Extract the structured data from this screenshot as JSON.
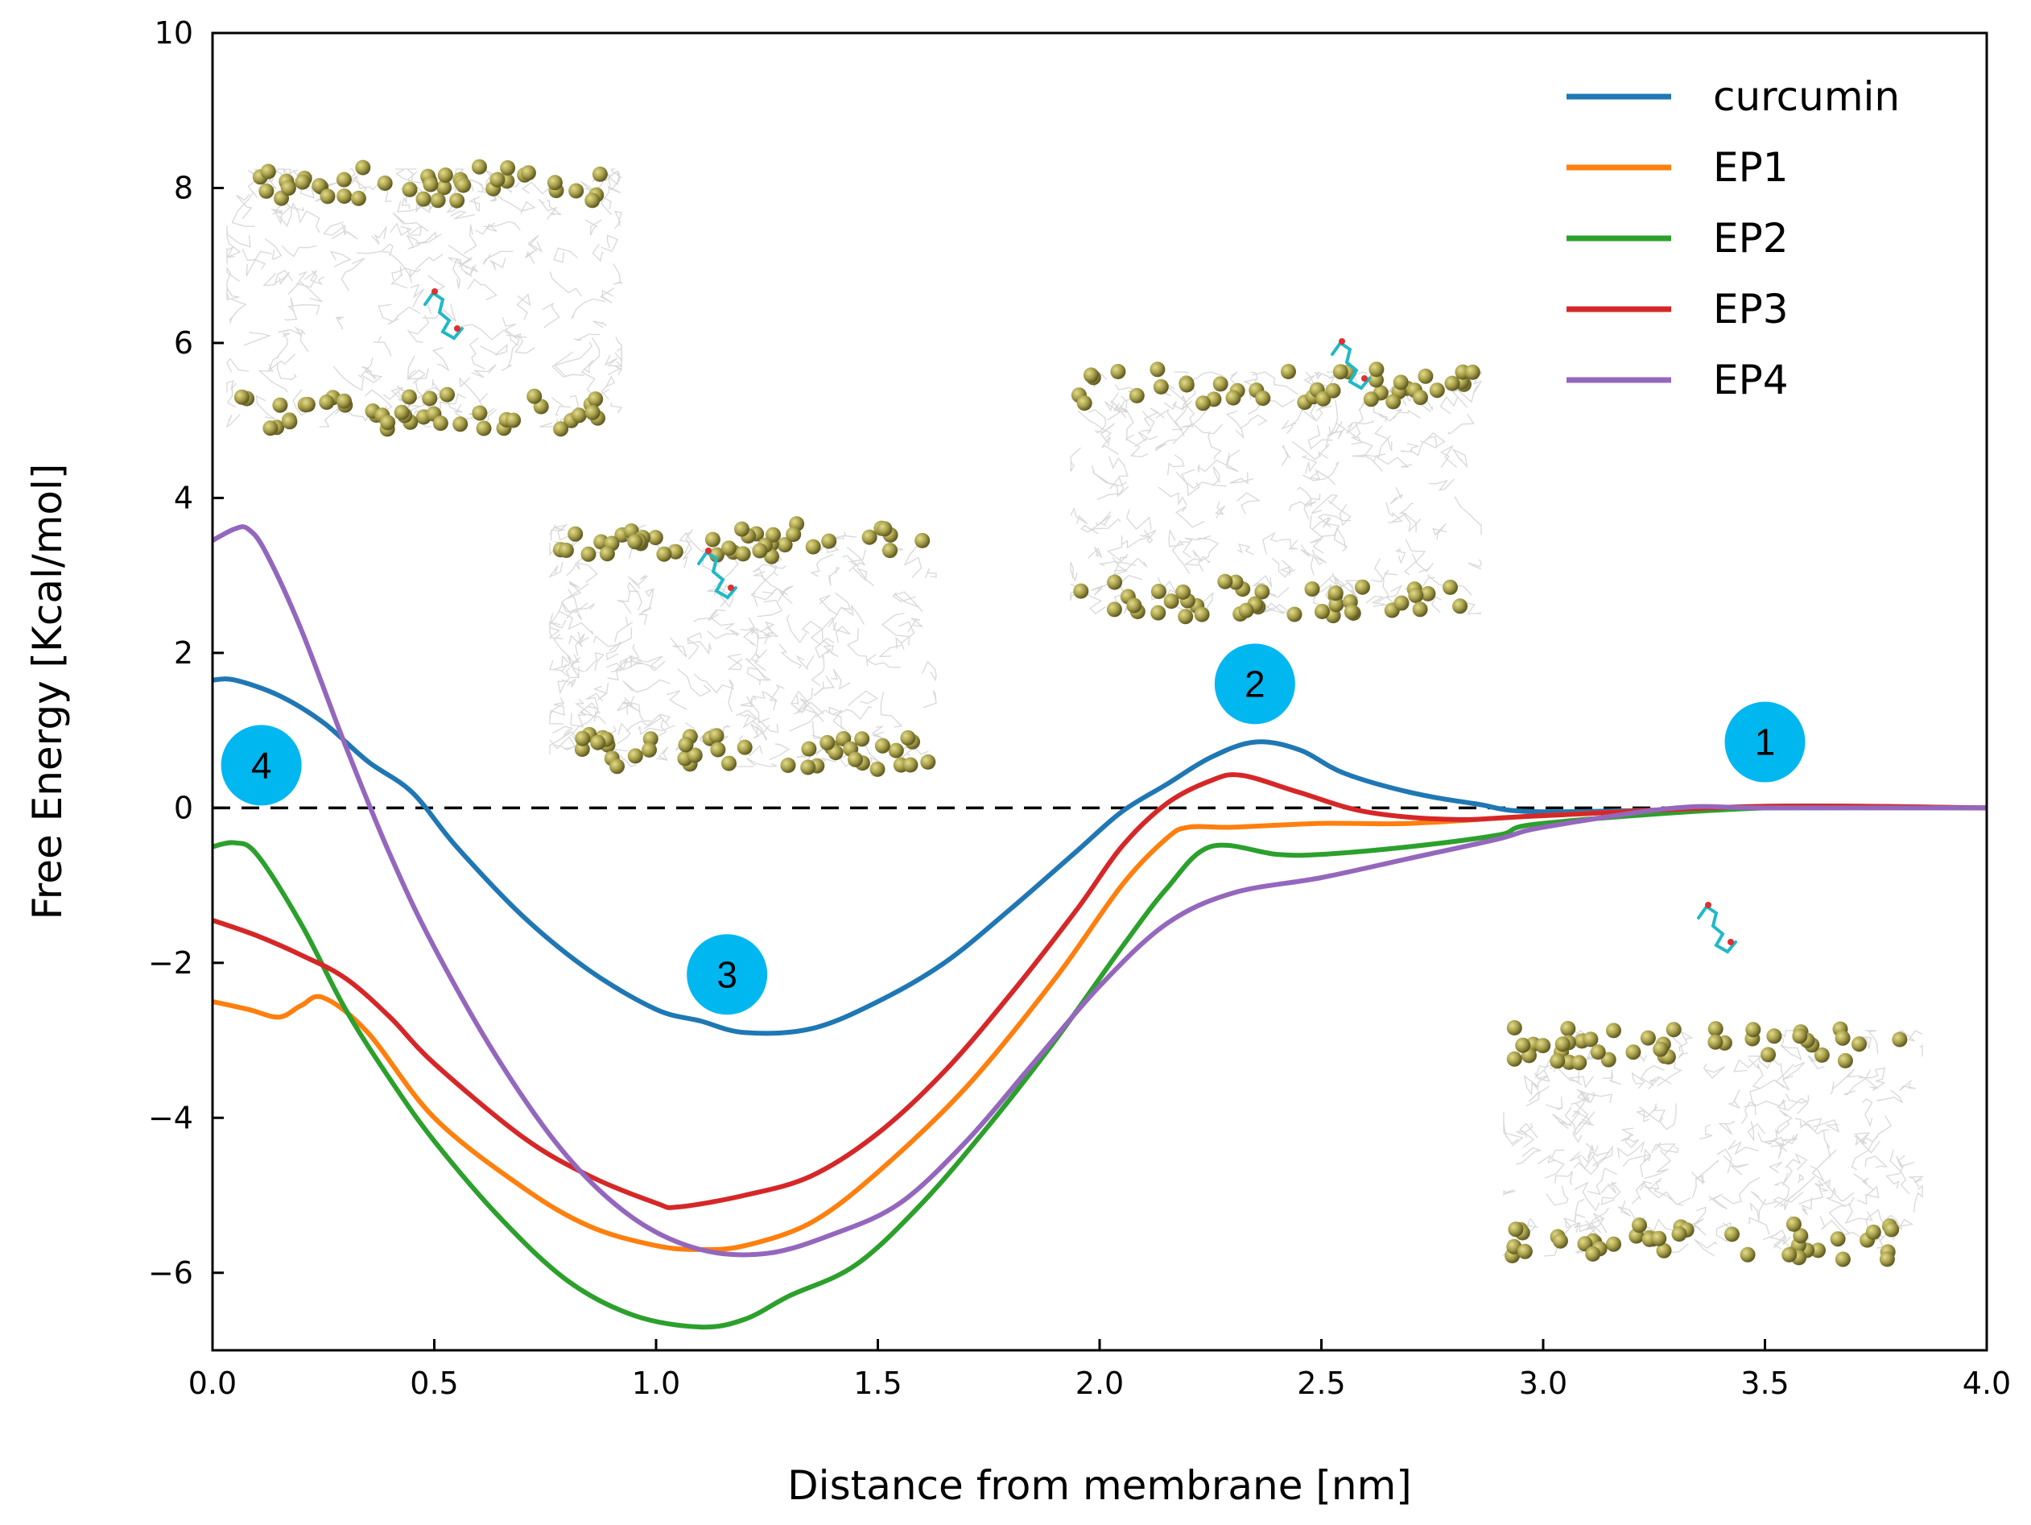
{
  "chart_data": {
    "type": "line",
    "xlabel": "Distance from membrane [nm]",
    "ylabel": "Free Energy [Kcal/mol]",
    "xlim": [
      0.0,
      4.0
    ],
    "ylim": [
      -7,
      10
    ],
    "x_ticks": [
      "0.0",
      "0.5",
      "1.0",
      "1.5",
      "2.0",
      "2.5",
      "3.0",
      "3.5",
      "4.0"
    ],
    "y_ticks": [
      "−6",
      "−4",
      "−2",
      "0",
      "2",
      "4",
      "6",
      "8",
      "10"
    ],
    "reference_line": {
      "y": 0,
      "style": "dashed",
      "color": "#000000"
    },
    "legend_position": "top-right",
    "series": [
      {
        "name": "curcumin",
        "color": "#1f77b4",
        "points": [
          [
            0.0,
            1.65
          ],
          [
            0.05,
            1.65
          ],
          [
            0.15,
            1.45
          ],
          [
            0.25,
            1.1
          ],
          [
            0.35,
            0.6
          ],
          [
            0.45,
            0.2
          ],
          [
            0.55,
            -0.5
          ],
          [
            0.7,
            -1.4
          ],
          [
            0.85,
            -2.1
          ],
          [
            1.0,
            -2.6
          ],
          [
            1.1,
            -2.75
          ],
          [
            1.2,
            -2.9
          ],
          [
            1.35,
            -2.85
          ],
          [
            1.5,
            -2.5
          ],
          [
            1.65,
            -2.0
          ],
          [
            1.8,
            -1.3
          ],
          [
            1.95,
            -0.55
          ],
          [
            2.05,
            -0.05
          ],
          [
            2.15,
            0.3
          ],
          [
            2.25,
            0.65
          ],
          [
            2.35,
            0.85
          ],
          [
            2.45,
            0.75
          ],
          [
            2.55,
            0.45
          ],
          [
            2.7,
            0.2
          ],
          [
            2.85,
            0.05
          ],
          [
            3.0,
            -0.05
          ],
          [
            3.5,
            0.0
          ],
          [
            4.0,
            0.0
          ]
        ]
      },
      {
        "name": "EP1",
        "color": "#ff7f0e",
        "points": [
          [
            0.0,
            -2.5
          ],
          [
            0.08,
            -2.6
          ],
          [
            0.15,
            -2.7
          ],
          [
            0.2,
            -2.55
          ],
          [
            0.25,
            -2.45
          ],
          [
            0.35,
            -2.9
          ],
          [
            0.5,
            -4.0
          ],
          [
            0.7,
            -4.9
          ],
          [
            0.85,
            -5.4
          ],
          [
            1.0,
            -5.65
          ],
          [
            1.1,
            -5.7
          ],
          [
            1.2,
            -5.65
          ],
          [
            1.35,
            -5.35
          ],
          [
            1.5,
            -4.7
          ],
          [
            1.7,
            -3.6
          ],
          [
            1.9,
            -2.2
          ],
          [
            2.05,
            -1.0
          ],
          [
            2.15,
            -0.4
          ],
          [
            2.2,
            -0.25
          ],
          [
            2.3,
            -0.25
          ],
          [
            2.5,
            -0.2
          ],
          [
            2.7,
            -0.2
          ],
          [
            3.0,
            -0.1
          ],
          [
            3.5,
            0.02
          ],
          [
            4.0,
            0.0
          ]
        ]
      },
      {
        "name": "EP2",
        "color": "#2ca02c",
        "points": [
          [
            0.0,
            -0.5
          ],
          [
            0.05,
            -0.45
          ],
          [
            0.1,
            -0.6
          ],
          [
            0.2,
            -1.5
          ],
          [
            0.3,
            -2.6
          ],
          [
            0.4,
            -3.5
          ],
          [
            0.5,
            -4.3
          ],
          [
            0.65,
            -5.3
          ],
          [
            0.8,
            -6.1
          ],
          [
            0.95,
            -6.55
          ],
          [
            1.1,
            -6.7
          ],
          [
            1.2,
            -6.6
          ],
          [
            1.3,
            -6.3
          ],
          [
            1.45,
            -5.9
          ],
          [
            1.6,
            -5.1
          ],
          [
            1.75,
            -4.1
          ],
          [
            1.9,
            -3.0
          ],
          [
            2.05,
            -1.8
          ],
          [
            2.15,
            -1.05
          ],
          [
            2.25,
            -0.5
          ],
          [
            2.4,
            -0.6
          ],
          [
            2.5,
            -0.6
          ],
          [
            2.7,
            -0.5
          ],
          [
            2.9,
            -0.35
          ],
          [
            3.0,
            -0.2
          ],
          [
            3.5,
            0.0
          ],
          [
            4.0,
            0.0
          ]
        ]
      },
      {
        "name": "EP3",
        "color": "#d62728",
        "points": [
          [
            0.0,
            -1.45
          ],
          [
            0.1,
            -1.65
          ],
          [
            0.2,
            -1.9
          ],
          [
            0.3,
            -2.2
          ],
          [
            0.4,
            -2.7
          ],
          [
            0.5,
            -3.3
          ],
          [
            0.7,
            -4.25
          ],
          [
            0.85,
            -4.75
          ],
          [
            1.0,
            -5.1
          ],
          [
            1.05,
            -5.15
          ],
          [
            1.2,
            -5.0
          ],
          [
            1.35,
            -4.75
          ],
          [
            1.5,
            -4.2
          ],
          [
            1.65,
            -3.4
          ],
          [
            1.8,
            -2.4
          ],
          [
            1.95,
            -1.3
          ],
          [
            2.05,
            -0.5
          ],
          [
            2.15,
            0.05
          ],
          [
            2.25,
            0.35
          ],
          [
            2.32,
            0.42
          ],
          [
            2.45,
            0.2
          ],
          [
            2.6,
            -0.05
          ],
          [
            2.8,
            -0.15
          ],
          [
            3.0,
            -0.1
          ],
          [
            3.5,
            0.02
          ],
          [
            4.0,
            0.0
          ]
        ]
      },
      {
        "name": "EP4",
        "color": "#9467bd",
        "points": [
          [
            0.0,
            3.45
          ],
          [
            0.05,
            3.6
          ],
          [
            0.08,
            3.6
          ],
          [
            0.12,
            3.3
          ],
          [
            0.2,
            2.3
          ],
          [
            0.3,
            0.8
          ],
          [
            0.4,
            -0.6
          ],
          [
            0.5,
            -1.8
          ],
          [
            0.65,
            -3.3
          ],
          [
            0.8,
            -4.5
          ],
          [
            0.95,
            -5.3
          ],
          [
            1.1,
            -5.7
          ],
          [
            1.25,
            -5.75
          ],
          [
            1.4,
            -5.5
          ],
          [
            1.55,
            -5.1
          ],
          [
            1.7,
            -4.3
          ],
          [
            1.85,
            -3.3
          ],
          [
            2.0,
            -2.3
          ],
          [
            2.15,
            -1.5
          ],
          [
            2.3,
            -1.1
          ],
          [
            2.5,
            -0.9
          ],
          [
            2.7,
            -0.65
          ],
          [
            2.9,
            -0.4
          ],
          [
            3.0,
            -0.25
          ],
          [
            3.3,
            0.0
          ],
          [
            3.5,
            0.0
          ],
          [
            4.0,
            0.0
          ]
        ]
      }
    ],
    "annotations": [
      {
        "label": "1",
        "x": 3.5,
        "y": 0.85
      },
      {
        "label": "2",
        "x": 2.35,
        "y": 1.6
      },
      {
        "label": "3",
        "x": 1.16,
        "y": -2.15
      },
      {
        "label": "4",
        "x": 0.11,
        "y": 0.55
      }
    ]
  },
  "colors": {
    "marker_fill": "#00b7f0",
    "headgroup": "#a8a04a",
    "lipid_tail": "#d4d4d4"
  }
}
